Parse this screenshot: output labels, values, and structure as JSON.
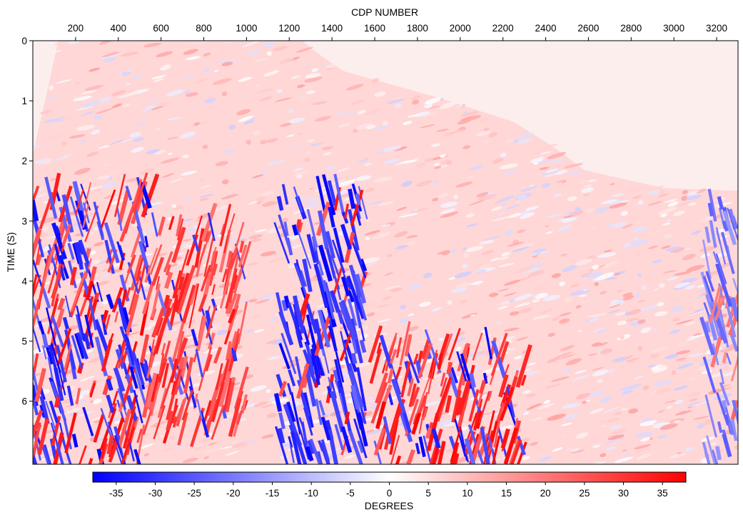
{
  "chart_data": {
    "type": "heatmap",
    "title": "",
    "xlabel": "CDP NUMBER",
    "ylabel": "TIME (S)",
    "x_axis_position": "top",
    "xlim": [
      0,
      3300
    ],
    "ylim": [
      0,
      7.05
    ],
    "y_inverted": true,
    "x_ticks": [
      200,
      400,
      600,
      800,
      1000,
      1200,
      1400,
      1600,
      1800,
      2000,
      2200,
      2400,
      2600,
      2800,
      3000,
      3200
    ],
    "y_ticks": [
      0,
      1,
      2,
      3,
      4,
      5,
      6
    ],
    "colorbar": {
      "label": "DEGREES",
      "range": [
        -38,
        38
      ],
      "ticks": [
        -35,
        -30,
        -25,
        -20,
        -15,
        -10,
        -5,
        0,
        5,
        10,
        15,
        20,
        25,
        30,
        35
      ],
      "colormap": [
        "#0000ff",
        "#ffffff",
        "#ff0000"
      ],
      "position": "bottom"
    },
    "data_extent_top": [
      [
        0,
        1.9
      ],
      [
        120,
        0.0
      ],
      [
        1260,
        0.0
      ],
      [
        1330,
        0.2
      ],
      [
        1450,
        0.5
      ],
      [
        1900,
        0.95
      ],
      [
        2250,
        1.35
      ],
      [
        2430,
        1.75
      ],
      [
        2580,
        2.15
      ],
      [
        2700,
        2.25
      ],
      [
        2950,
        2.45
      ],
      [
        3300,
        2.5
      ]
    ],
    "dominant_regions": [
      {
        "x_range": [
          0,
          550
        ],
        "t_range": [
          2.5,
          7.05
        ],
        "sign": "mixed",
        "magnitude_deg": 38
      },
      {
        "x_range": [
          550,
          1000
        ],
        "t_range": [
          3.0,
          6.5
        ],
        "sign": "positive",
        "magnitude_deg": 35
      },
      {
        "x_range": [
          1150,
          1550
        ],
        "t_range": [
          2.5,
          7.05
        ],
        "sign": "negative",
        "magnitude_deg": 38
      },
      {
        "x_range": [
          1600,
          2300
        ],
        "t_range": [
          5.0,
          7.05
        ],
        "sign": "positive",
        "magnitude_deg": 38
      },
      {
        "x_range": [
          3150,
          3300
        ],
        "t_range": [
          2.5,
          7.05
        ],
        "sign": "negative",
        "magnitude_deg": 25
      }
    ]
  }
}
